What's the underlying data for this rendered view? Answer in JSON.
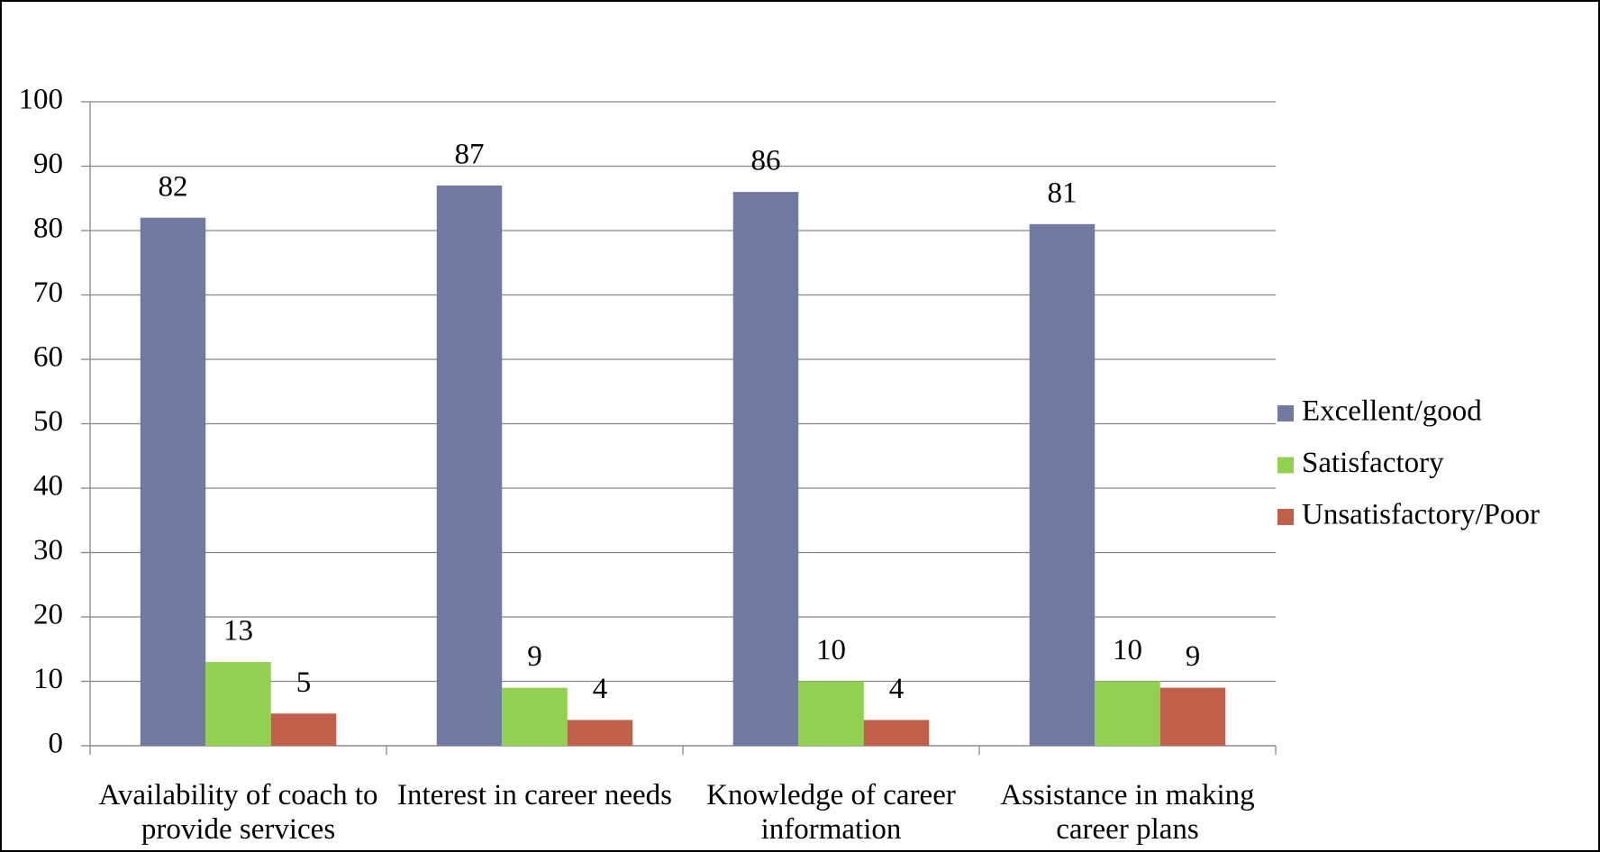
{
  "chart_data": {
    "type": "bar",
    "categories": [
      "Availability of coach to provide services",
      "Interest in career needs",
      "Knowledge of career information",
      "Assistance in making career plans"
    ],
    "series": [
      {
        "name": "Excellent/good",
        "color": "#717ba1",
        "values": [
          82,
          87,
          86,
          81
        ]
      },
      {
        "name": "Satisfactory",
        "color": "#92d050",
        "values": [
          13,
          9,
          10,
          10
        ]
      },
      {
        "name": "Unsatisfactory/Poor",
        "color": "#c0604a",
        "values": [
          5,
          4,
          4,
          9
        ]
      }
    ],
    "ylim": [
      0,
      100
    ],
    "yticks": [
      0,
      10,
      20,
      30,
      40,
      50,
      60,
      70,
      80,
      90,
      100
    ],
    "grid": true,
    "legend": "right"
  }
}
